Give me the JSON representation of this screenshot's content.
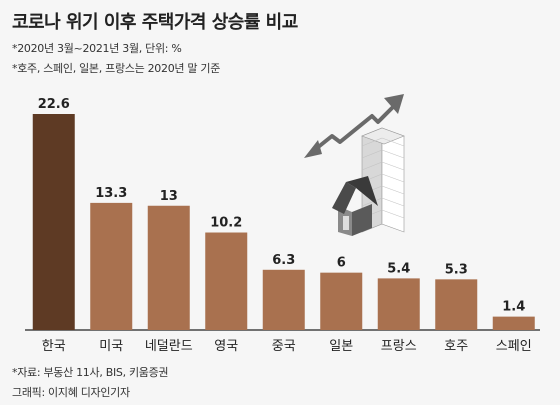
{
  "header": {
    "title": "코로나 위기 이후 주택가격 상승률 비교",
    "subtitle_period": "*2020년 3월~2021년 3월, 단위: %",
    "subtitle_note": "*호주, 스페인, 일본, 프랑스는 2020년 말 기준"
  },
  "footer": {
    "source": "*자료: 부동산 11사, BIS, 키움증권",
    "credit": "그래픽: 이지혜 디자인기자"
  },
  "colors": {
    "highlight_bar": "#5e3a24",
    "bar": "#a9714f",
    "baseline": "#222222",
    "background": "#f6f6f6"
  },
  "illustration": "house-and-rising-buildings-arrow-icon",
  "chart_data": {
    "type": "bar",
    "categories": [
      "한국",
      "미국",
      "네덜란드",
      "영국",
      "중국",
      "일본",
      "프랑스",
      "호주",
      "스페인"
    ],
    "values": [
      22.6,
      13.3,
      13,
      10.2,
      6.3,
      6,
      5.4,
      5.3,
      1.4
    ],
    "value_labels": [
      "22.6",
      "13.3",
      "13",
      "10.2",
      "6.3",
      "6",
      "5.4",
      "5.3",
      "1.4"
    ],
    "highlight_index": 0,
    "ylim": [
      0,
      22.6
    ],
    "grid": false,
    "legend": "none"
  }
}
